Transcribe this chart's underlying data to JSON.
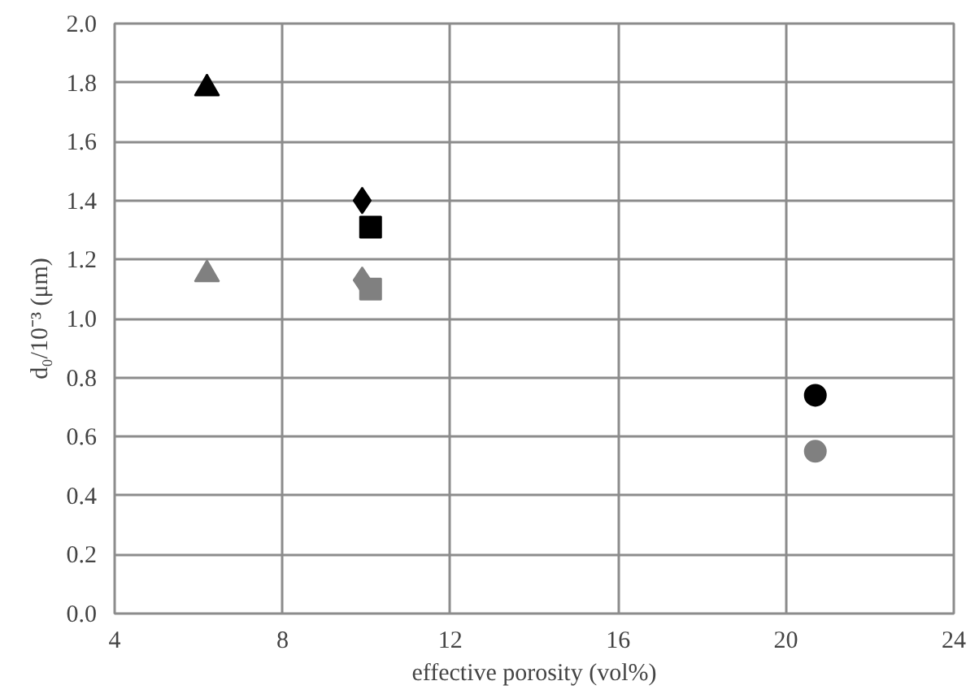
{
  "chart_data": {
    "type": "scatter",
    "xlabel": "effective porosity (vol%)",
    "ylabel": "d₀/10⁻³ (μm)",
    "xlim": [
      4,
      24
    ],
    "xticks": [
      4,
      8,
      12,
      16,
      20,
      24
    ],
    "ylim": [
      0,
      2.0
    ],
    "yticks": [
      {
        "value": 0,
        "label": "0.0"
      },
      {
        "value": 0.2,
        "label": "0.2"
      },
      {
        "value": 0.4,
        "label": "0.4"
      },
      {
        "value": 0.6,
        "label": "0.6"
      },
      {
        "value": 0.8,
        "label": "0.8"
      },
      {
        "value": 1.0,
        "label": "1.0"
      },
      {
        "value": 1.2,
        "label": "1.2"
      },
      {
        "value": 1.4,
        "label": "1.4"
      },
      {
        "value": 1.6,
        "label": "1.6"
      },
      {
        "value": 1.8,
        "label": "1.8"
      },
      {
        "value": 2.0,
        "label": "2.0"
      }
    ],
    "grid": true,
    "series": [
      {
        "color": "#000000",
        "marker": "triangle",
        "x": [
          6.2
        ],
        "values": [
          1.78
        ]
      },
      {
        "color": "#808080",
        "marker": "triangle",
        "x": [
          6.2
        ],
        "values": [
          1.15
        ]
      },
      {
        "color": "#000000",
        "marker": "diamond",
        "x": [
          9.9
        ],
        "values": [
          1.4
        ]
      },
      {
        "color": "#808080",
        "marker": "diamond",
        "x": [
          9.9
        ],
        "values": [
          1.13
        ]
      },
      {
        "color": "#000000",
        "marker": "square",
        "x": [
          10.1
        ],
        "values": [
          1.31
        ]
      },
      {
        "color": "#808080",
        "marker": "square",
        "x": [
          10.1
        ],
        "values": [
          1.1
        ]
      },
      {
        "color": "#000000",
        "marker": "circle",
        "x": [
          20.7
        ],
        "values": [
          0.74
        ]
      },
      {
        "color": "#808080",
        "marker": "circle",
        "x": [
          20.7
        ],
        "values": [
          0.55
        ]
      }
    ]
  }
}
